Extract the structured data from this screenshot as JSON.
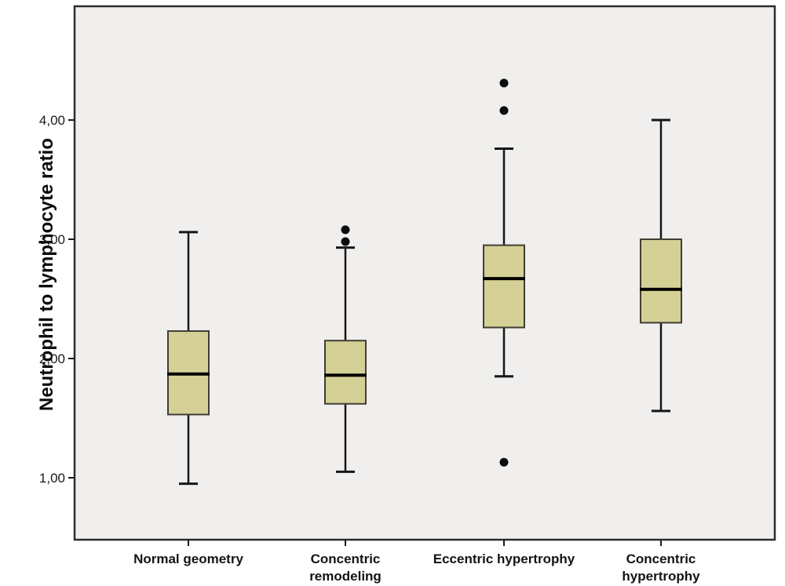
{
  "figure": {
    "background": "#ffffff",
    "plot_background": "#f0efed",
    "plot_border_color": "#2d2d2d"
  },
  "chart_data": {
    "type": "boxplot",
    "title": "",
    "xlabel": "",
    "ylabel": "Neutrophil to lymphocyte ratio",
    "ylim": [
      0.48,
      4.95
    ],
    "grid": false,
    "legend": "none",
    "decimal_separator": ",",
    "yticks": {
      "values": [
        1,
        2,
        3,
        4
      ],
      "labels": [
        "1,00",
        "2,00",
        "3,00",
        "4,00"
      ]
    },
    "categories": [
      "Normal geometry",
      "Concentric remodeling",
      "Eccentric hypertrophy",
      "Concentric hypertrophy"
    ],
    "category_lines": [
      [
        "Normal geometry"
      ],
      [
        "Concentric",
        "remodeling"
      ],
      [
        "Eccentric hypertrophy"
      ],
      [
        "Concentric",
        "hypertrophy"
      ]
    ],
    "box_fill": "#d5d096",
    "box_border": "#3f3e33",
    "median_color": "#000000",
    "whisker_color": "#161616",
    "outlier_color": "#0b0b0b",
    "boxes": [
      {
        "category": "Normal geometry",
        "whisker_low": 0.95,
        "q1": 1.53,
        "median": 1.87,
        "q3": 2.23,
        "whisker_high": 3.06,
        "outliers": []
      },
      {
        "category": "Concentric remodeling",
        "whisker_low": 1.05,
        "q1": 1.62,
        "median": 1.86,
        "q3": 2.15,
        "whisker_high": 2.93,
        "outliers": [
          2.98,
          3.08
        ]
      },
      {
        "category": "Eccentric hypertrophy",
        "whisker_low": 1.85,
        "q1": 2.26,
        "median": 2.67,
        "q3": 2.95,
        "whisker_high": 3.76,
        "outliers": [
          1.13,
          4.08,
          4.31
        ]
      },
      {
        "category": "Concentric hypertrophy",
        "whisker_low": 1.56,
        "q1": 2.3,
        "median": 2.58,
        "q3": 3.0,
        "whisker_high": 4.0,
        "outliers": []
      }
    ]
  }
}
